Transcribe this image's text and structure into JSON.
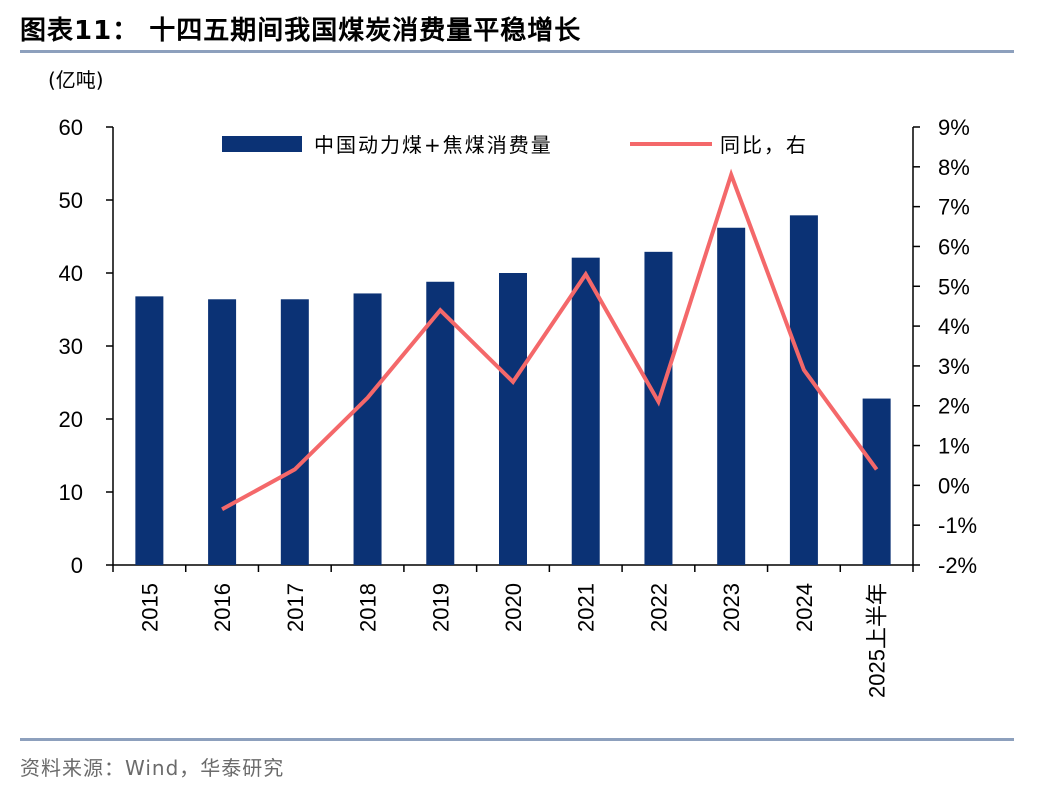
{
  "header": {
    "title": "图表11： 十四五期间我国煤炭消费量平稳增长",
    "unit_left": "(亿吨)",
    "source": "资料来源：Wind，华泰研究"
  },
  "colors": {
    "bar": "#0b3275",
    "line": "#f4686a",
    "rule": "#8da0bd"
  },
  "chart_data": {
    "type": "bar",
    "categories": [
      "2015",
      "2016",
      "2017",
      "2018",
      "2019",
      "2020",
      "2021",
      "2022",
      "2023",
      "2024",
      "2025上半年"
    ],
    "series": [
      {
        "name": "中国动力煤+焦煤消费量",
        "type": "bar",
        "axis": "left",
        "values": [
          36.8,
          36.4,
          36.4,
          37.2,
          38.8,
          40.0,
          42.1,
          42.9,
          46.2,
          47.9,
          22.8
        ]
      },
      {
        "name": "同比，右",
        "type": "line",
        "axis": "right",
        "values": [
          null,
          -0.6,
          0.4,
          2.2,
          4.4,
          2.6,
          5.3,
          2.1,
          7.8,
          2.9,
          0.4
        ]
      }
    ],
    "y_left": {
      "min": 0,
      "max": 60,
      "ticks": [
        0,
        10,
        20,
        30,
        40,
        50,
        60
      ]
    },
    "y_right": {
      "min": -2,
      "max": 9,
      "ticks": [
        "-2%",
        "-1%",
        "0%",
        "1%",
        "2%",
        "3%",
        "4%",
        "5%",
        "6%",
        "7%",
        "8%",
        "9%"
      ]
    },
    "legend": "top-center"
  }
}
